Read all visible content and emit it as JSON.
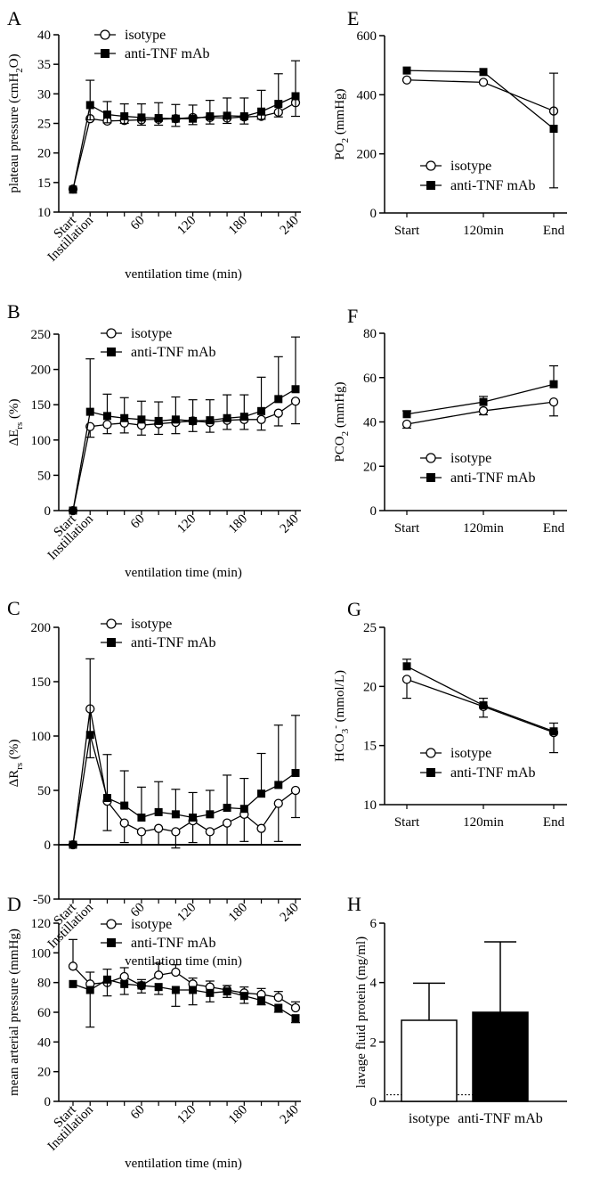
{
  "colors": {
    "isotype": "#ffffff",
    "anti_tnf": "#000000",
    "stroke": "#000000",
    "reference_line": "#000000"
  },
  "chart_data": [
    {
      "panel": "A",
      "type": "line",
      "ylabel": "plateau pressure (cmH2O)",
      "ylabel_parts": [
        "plateau pressure (cmH",
        "2",
        "O)"
      ],
      "xlabel": "ventilation time (min)",
      "ylim": [
        10,
        40
      ],
      "yticks": [
        10,
        15,
        20,
        25,
        30,
        35,
        40
      ],
      "xlim": [
        -20,
        240
      ],
      "x_tick_labels": [
        {
          "x": -20,
          "label": "Start"
        },
        {
          "x": 0,
          "label": "Instillation"
        },
        {
          "x": 60,
          "label": "60"
        },
        {
          "x": 120,
          "label": "120"
        },
        {
          "x": 180,
          "label": "180"
        },
        {
          "x": 240,
          "label": "240"
        }
      ],
      "legend": "top-left",
      "series": [
        {
          "name": "isotype",
          "marker": "circle",
          "x": [
            -20,
            0,
            20,
            40,
            60,
            80,
            100,
            120,
            140,
            160,
            180,
            200,
            220,
            240
          ],
          "y": [
            13.9,
            25.8,
            25.4,
            25.5,
            25.6,
            25.7,
            25.8,
            26.0,
            26.0,
            25.9,
            26.1,
            26.2,
            26.9,
            28.5
          ],
          "err_up": [
            0,
            0,
            0,
            0,
            0,
            0,
            0,
            0,
            0,
            0,
            0,
            0,
            0,
            0
          ],
          "err_down": [
            0,
            0,
            0,
            0,
            0,
            0,
            0,
            0,
            0,
            0,
            0,
            0,
            0,
            0
          ]
        },
        {
          "name": "anti-TNF mAb",
          "marker": "square",
          "x": [
            -20,
            0,
            20,
            40,
            60,
            80,
            100,
            120,
            140,
            160,
            180,
            200,
            220,
            240
          ],
          "y": [
            13.8,
            28.1,
            26.5,
            26.2,
            26.0,
            25.9,
            25.8,
            25.8,
            26.2,
            26.3,
            26.2,
            27.0,
            28.3,
            29.6
          ],
          "err_up": [
            0,
            4.2,
            2.2,
            2.1,
            2.3,
            2.6,
            2.4,
            2.3,
            2.7,
            3.0,
            3.1,
            3.6,
            5.1,
            6.0
          ],
          "err_down": [
            0,
            2.5,
            1.4,
            1.2,
            1.3,
            1.2,
            1.3,
            1.0,
            1.3,
            1.3,
            1.3,
            1.3,
            2.2,
            3.4
          ]
        }
      ]
    },
    {
      "panel": "B",
      "type": "line",
      "ylabel": "ΔErs (%)",
      "ylabel_parts": [
        "ΔE",
        "rs",
        " (%)"
      ],
      "xlabel": "ventilation time (min)",
      "ylim": [
        0,
        250
      ],
      "yticks": [
        0,
        50,
        100,
        150,
        200,
        250
      ],
      "xlim": [
        -20,
        240
      ],
      "x_tick_labels": [
        {
          "x": -20,
          "label": "Start"
        },
        {
          "x": 0,
          "label": "Instillation"
        },
        {
          "x": 60,
          "label": "60"
        },
        {
          "x": 120,
          "label": "120"
        },
        {
          "x": 180,
          "label": "180"
        },
        {
          "x": 240,
          "label": "240"
        }
      ],
      "legend": "top-left",
      "series": [
        {
          "name": "isotype",
          "marker": "circle",
          "x": [
            -20,
            0,
            20,
            40,
            60,
            80,
            100,
            120,
            140,
            160,
            180,
            200,
            220,
            240
          ],
          "y": [
            0,
            119,
            122,
            124,
            121,
            123,
            125,
            127,
            125,
            128,
            129,
            129,
            138,
            155
          ],
          "err_up": [
            0,
            0,
            0,
            0,
            0,
            0,
            0,
            0,
            0,
            0,
            0,
            0,
            0,
            0
          ],
          "err_down": [
            0,
            15,
            13,
            14,
            14,
            15,
            16,
            15,
            14,
            13,
            14,
            15,
            18,
            32
          ]
        },
        {
          "name": "anti-TNF mAb",
          "marker": "square",
          "x": [
            -20,
            0,
            20,
            40,
            60,
            80,
            100,
            120,
            140,
            160,
            180,
            200,
            220,
            240
          ],
          "y": [
            0,
            140,
            134,
            131,
            129,
            127,
            129,
            127,
            128,
            131,
            133,
            141,
            158,
            172
          ],
          "err_up": [
            0,
            75,
            31,
            29,
            26,
            27,
            32,
            30,
            29,
            33,
            31,
            48,
            60,
            74
          ],
          "err_down": [
            0,
            0,
            0,
            0,
            0,
            0,
            0,
            0,
            0,
            0,
            0,
            0,
            0,
            0
          ]
        }
      ]
    },
    {
      "panel": "C",
      "type": "line",
      "ylabel": "ΔRrs (%)",
      "ylabel_parts": [
        "ΔR",
        "rs",
        " (%)"
      ],
      "xlabel": "ventilation time (min)",
      "ylim": [
        -50,
        200
      ],
      "yticks": [
        -50,
        0,
        50,
        100,
        150,
        200
      ],
      "xlim": [
        -20,
        240
      ],
      "x_tick_labels": [
        {
          "x": -20,
          "label": "Start"
        },
        {
          "x": 0,
          "label": "Instillation"
        },
        {
          "x": 60,
          "label": "60"
        },
        {
          "x": 120,
          "label": "120"
        },
        {
          "x": 180,
          "label": "180"
        },
        {
          "x": 240,
          "label": "240"
        }
      ],
      "legend": "top-left",
      "series": [
        {
          "name": "isotype",
          "marker": "circle",
          "x": [
            -20,
            0,
            20,
            40,
            60,
            80,
            100,
            120,
            140,
            160,
            180,
            200,
            220,
            240
          ],
          "y": [
            0,
            125,
            40,
            20,
            12,
            15,
            12,
            22,
            12,
            20,
            28,
            15,
            38,
            50
          ],
          "err_up": [
            0,
            0,
            0,
            0,
            0,
            0,
            0,
            0,
            0,
            0,
            0,
            0,
            0,
            0
          ],
          "err_down": [
            0,
            45,
            27,
            18,
            12,
            15,
            15,
            20,
            12,
            20,
            25,
            15,
            35,
            25
          ]
        },
        {
          "name": "anti-TNF mAb",
          "marker": "square",
          "x": [
            -20,
            0,
            20,
            40,
            60,
            80,
            100,
            120,
            140,
            160,
            180,
            200,
            220,
            240
          ],
          "y": [
            0,
            101,
            43,
            36,
            25,
            30,
            28,
            25,
            28,
            34,
            33,
            47,
            55,
            66
          ],
          "err_up": [
            0,
            70,
            40,
            32,
            28,
            28,
            23,
            23,
            22,
            30,
            28,
            37,
            55,
            53
          ],
          "err_down": [
            0,
            0,
            0,
            0,
            0,
            0,
            0,
            0,
            0,
            0,
            0,
            0,
            0,
            0
          ]
        }
      ]
    },
    {
      "panel": "D",
      "type": "line",
      "ylabel": "mean arterial pressure (mmHg)",
      "ylabel_parts": [
        "mean arterial pressure (mmHg)"
      ],
      "xlabel": "ventilation time (min)",
      "ylim": [
        0,
        120
      ],
      "yticks": [
        0,
        20,
        40,
        60,
        80,
        100,
        120
      ],
      "xlim": [
        -20,
        240
      ],
      "x_tick_labels": [
        {
          "x": -20,
          "label": "Start"
        },
        {
          "x": 0,
          "label": "Instillation"
        },
        {
          "x": 60,
          "label": "60"
        },
        {
          "x": 120,
          "label": "120"
        },
        {
          "x": 180,
          "label": "180"
        },
        {
          "x": 240,
          "label": "240"
        }
      ],
      "legend": "top-left",
      "series": [
        {
          "name": "isotype",
          "marker": "circle",
          "x": [
            -20,
            0,
            20,
            40,
            60,
            80,
            100,
            120,
            140,
            160,
            180,
            200,
            220,
            240
          ],
          "y": [
            91,
            79,
            80,
            84,
            78,
            85,
            87,
            79,
            77,
            75,
            73,
            72,
            70,
            63
          ],
          "err_up": [
            18,
            8,
            9,
            6,
            4,
            8,
            5,
            4,
            4,
            3,
            4,
            4,
            4,
            4
          ],
          "err_down": [
            0,
            0,
            0,
            0,
            0,
            0,
            0,
            0,
            0,
            0,
            0,
            0,
            0,
            0
          ]
        },
        {
          "name": "anti-TNF mAb",
          "marker": "square",
          "x": [
            -20,
            0,
            20,
            40,
            60,
            80,
            100,
            120,
            140,
            160,
            180,
            200,
            220,
            240
          ],
          "y": [
            79,
            75,
            82,
            79,
            78,
            77,
            75,
            75,
            73,
            74,
            71,
            68,
            63,
            56
          ],
          "err_up": [
            0,
            0,
            0,
            0,
            0,
            0,
            0,
            0,
            0,
            0,
            0,
            0,
            0,
            0
          ],
          "err_down": [
            0,
            25,
            11,
            7,
            5,
            5,
            11,
            10,
            6,
            4,
            5,
            3,
            3,
            3
          ]
        }
      ]
    },
    {
      "panel": "E",
      "type": "line",
      "ylabel": "PO2 (mmHg)",
      "ylabel_parts": [
        "PO",
        "2",
        " (mmHg)"
      ],
      "xlabel": "",
      "ylim": [
        0,
        600
      ],
      "yticks": [
        0,
        200,
        400,
        600
      ],
      "categories": [
        "Start",
        "120min",
        "End"
      ],
      "legend": "bottom-left",
      "series": [
        {
          "name": "isotype",
          "marker": "circle",
          "values": [
            450,
            442,
            345
          ],
          "err_up": [
            0,
            0,
            0
          ],
          "err_down": [
            0,
            0,
            0
          ]
        },
        {
          "name": "anti-TNF mAb",
          "marker": "square",
          "values": [
            482,
            477,
            285
          ],
          "err_up": [
            0,
            0,
            188
          ],
          "err_down": [
            0,
            0,
            200
          ]
        }
      ]
    },
    {
      "panel": "F",
      "type": "line",
      "ylabel": "PCO2 (mmHg)",
      "ylabel_parts": [
        "PCO",
        "2",
        " (mmHg)"
      ],
      "xlabel": "",
      "ylim": [
        0,
        80
      ],
      "yticks": [
        0,
        20,
        40,
        60,
        80
      ],
      "categories": [
        "Start",
        "120min",
        "End"
      ],
      "legend": "bottom-left",
      "series": [
        {
          "name": "isotype",
          "marker": "circle",
          "values": [
            39,
            45,
            49
          ],
          "err_up": [
            0,
            0,
            0
          ],
          "err_down": [
            1.8,
            1.8,
            6.3
          ]
        },
        {
          "name": "anti-TNF mAb",
          "marker": "square",
          "values": [
            43.5,
            49,
            57
          ],
          "err_up": [
            1.5,
            2.5,
            8.3
          ],
          "err_down": [
            0,
            0,
            0
          ]
        }
      ]
    },
    {
      "panel": "G",
      "type": "line",
      "ylabel": "HCO3- (mmol/L)",
      "ylabel_parts": [
        "HCO",
        "3",
        "",
        "-",
        " (mmol/L)"
      ],
      "xlabel": "",
      "ylim": [
        10,
        25
      ],
      "yticks": [
        10,
        15,
        20,
        25
      ],
      "categories": [
        "Start",
        "120min",
        "End"
      ],
      "legend": "bottom-left",
      "series": [
        {
          "name": "isotype",
          "marker": "circle",
          "values": [
            20.6,
            18.3,
            16.1
          ],
          "err_up": [
            0,
            0,
            0
          ],
          "err_down": [
            1.6,
            0.9,
            1.7
          ]
        },
        {
          "name": "anti-TNF mAb",
          "marker": "square",
          "values": [
            21.7,
            18.4,
            16.2
          ],
          "err_up": [
            0.6,
            0.6,
            0.7
          ],
          "err_down": [
            0,
            0,
            0
          ]
        }
      ]
    },
    {
      "panel": "H",
      "type": "bar",
      "ylabel": "lavage fluid protein (mg/ml)",
      "ylabel_parts": [
        "lavage fluid protein (mg/ml)"
      ],
      "xlabel": "",
      "ylim": [
        0,
        6
      ],
      "yticks": [
        0,
        2,
        4,
        6
      ],
      "categories": [
        "isotype",
        "anti-TNF mAb"
      ],
      "values": [
        2.73,
        3.0
      ],
      "err_up": [
        1.25,
        2.37
      ],
      "reference_line": 0.22
    }
  ]
}
